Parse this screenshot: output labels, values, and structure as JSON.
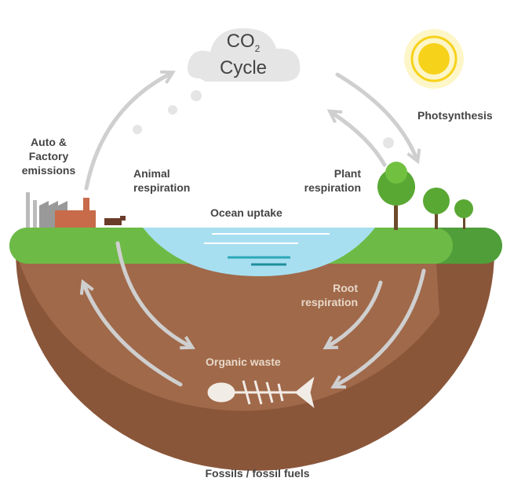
{
  "title": {
    "main": "CO",
    "subscript": "2",
    "line2": "Cycle"
  },
  "labels": {
    "emissions": [
      "Auto &",
      "Factory",
      "emissions"
    ],
    "animal_respiration": [
      "Animal",
      "respiration"
    ],
    "plant_respiration": [
      "Plant",
      "respiration"
    ],
    "photosynthesis": "Photsynthesis",
    "ocean_uptake": "Ocean uptake",
    "root_respiration": [
      "Root",
      "respiration"
    ],
    "organic_waste": "Organic waste",
    "fossils": "Fossils / fossil fuels"
  }
}
